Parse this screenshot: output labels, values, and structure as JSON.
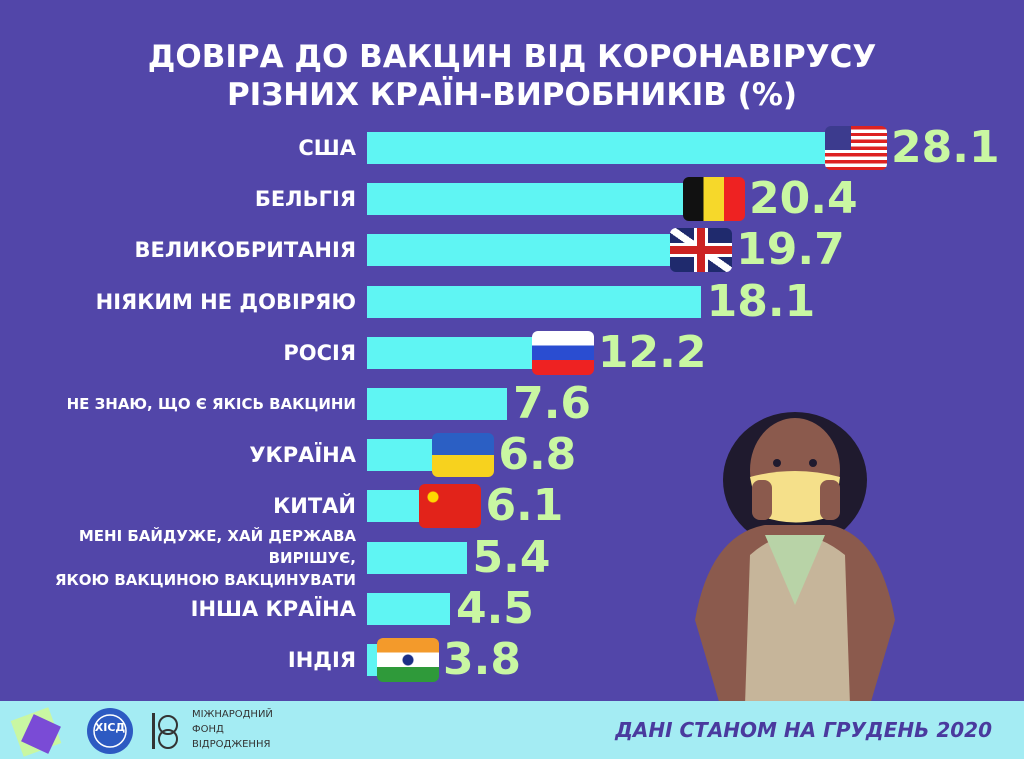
{
  "chart_data": {
    "type": "bar",
    "title": "ДОВІРА ДО ВАКЦИН ВІД КОРОНАВІРУСУ\nРІЗНИХ КРАЇН-ВИРОБНИКІВ (%)",
    "categories": [
      "США",
      "БЕЛЬГІЯ",
      "ВЕЛИКОБРИТАНІЯ",
      "НІЯКИМ НЕ ДОВІРЯЮ",
      "РОСІЯ",
      "НЕ ЗНАЮ, ЩО Є ЯКІСЬ ВАКЦИНИ",
      "УКРАЇНА",
      "КИТАЙ",
      "МЕНІ БАЙДУЖЕ, ХАЙ ДЕРЖАВА ВИРІШУЄ,\nЯКОЮ ВАКЦИНОЮ ВАКЦИНУВАТИ",
      "ІНША КРАЇНА",
      "ІНДІЯ"
    ],
    "values": [
      28.1,
      20.4,
      19.7,
      18.1,
      12.2,
      7.6,
      6.8,
      6.1,
      5.4,
      4.5,
      3.8
    ],
    "color": "#5ff5f3"
  },
  "footer": {
    "logo_badge": "ХІСД",
    "foundation": "МІЖНАРОДНИЙ\nФОНД\nВІДРОДЖЕННЯ",
    "note": "ДАНІ СТАНОМ НА ГРУДЕНЬ 2020"
  }
}
